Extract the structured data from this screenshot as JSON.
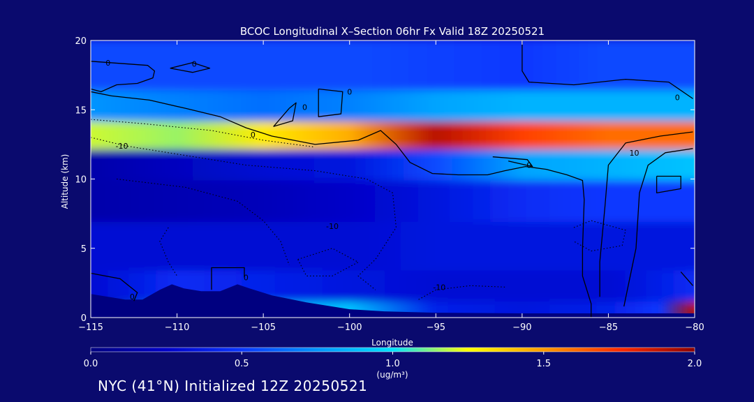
{
  "chart_data": {
    "type": "heatmap",
    "title": "BCOC Longitudinal X–Section 06hr  Fx Valid 18Z 20250521",
    "xlabel": "Longitude",
    "ylabel": "Altitude (km)",
    "xlim": [
      -115,
      -80
    ],
    "ylim": [
      0,
      20
    ],
    "x_ticks": [
      -115,
      -110,
      -105,
      -100,
      -95,
      -90,
      -85,
      -80
    ],
    "x_tick_labels": [
      "−115",
      "−110",
      "−105",
      "−100",
      "−95",
      "−90",
      "−85",
      "−80"
    ],
    "y_ticks": [
      0,
      5,
      10,
      15,
      20
    ],
    "y_tick_labels": [
      "0",
      "5",
      "10",
      "15",
      "20"
    ],
    "colorbar": {
      "min": 0.0,
      "max": 2.0,
      "ticks": [
        0.0,
        0.5,
        1.0,
        1.5,
        2.0
      ],
      "tick_labels": [
        "0.0",
        "0.5",
        "1.0",
        "1.5",
        "2.0"
      ],
      "unit_label": "(ug/m³)",
      "colors": [
        "#000080",
        "#0000c8",
        "#0a37ff",
        "#0094ff",
        "#00e2ff",
        "#ffff00",
        "#ff9900",
        "#ff2a00",
        "#8b0000"
      ]
    },
    "background_field": [
      {
        "alt": 0.5,
        "lon": [
          -115,
          -110,
          -100,
          -95,
          -90,
          -85,
          -82,
          -80
        ],
        "values": [
          0.05,
          0.75,
          0.9,
          0.4,
          0.35,
          0.4,
          0.5,
          1.9
        ]
      },
      {
        "alt": 2,
        "lon": [
          -115,
          -110,
          -100,
          -95,
          -90,
          -85,
          -80
        ],
        "values": [
          0.3,
          0.45,
          0.35,
          0.3,
          0.3,
          0.3,
          0.45
        ]
      },
      {
        "alt": 5,
        "lon": [
          -115,
          -100,
          -95,
          -90,
          -85,
          -80
        ],
        "values": [
          0.3,
          0.3,
          0.35,
          0.35,
          0.35,
          0.35
        ]
      },
      {
        "alt": 9,
        "lon": [
          -115,
          -105,
          -100,
          -95,
          -90,
          -85,
          -80
        ],
        "values": [
          0.15,
          0.2,
          0.25,
          0.35,
          0.45,
          0.5,
          0.5
        ]
      },
      {
        "alt": 11,
        "lon": [
          -115,
          -105,
          -100,
          -95,
          -90,
          -85,
          -80
        ],
        "values": [
          0.15,
          0.3,
          0.35,
          0.55,
          0.8,
          0.85,
          0.9
        ]
      },
      {
        "alt": 13.5,
        "lon": [
          -115,
          -110,
          -105,
          -100,
          -95,
          -90,
          -85,
          -80
        ],
        "values": [
          1.2,
          1.15,
          1.3,
          1.45,
          1.9,
          1.7,
          1.6,
          1.6
        ]
      },
      {
        "alt": 15,
        "lon": [
          -115,
          -110,
          -105,
          -100,
          -95,
          -90,
          -85,
          -80
        ],
        "values": [
          0.75,
          0.7,
          0.65,
          0.7,
          0.8,
          0.85,
          0.85,
          0.85
        ]
      },
      {
        "alt": 18,
        "lon": [
          -115,
          -100,
          -90,
          -85,
          -80
        ],
        "values": [
          0.55,
          0.55,
          0.5,
          0.55,
          0.55
        ]
      }
    ],
    "terrain": [
      [
        -115,
        1.7
      ],
      [
        -113,
        1.3
      ],
      [
        -112,
        1.3
      ],
      [
        -111,
        2.0
      ],
      [
        -110.3,
        2.4
      ],
      [
        -109.6,
        2.1
      ],
      [
        -108.6,
        1.9
      ],
      [
        -107.5,
        1.9
      ],
      [
        -106.5,
        2.4
      ],
      [
        -105.8,
        2.1
      ],
      [
        -104.5,
        1.6
      ],
      [
        -102.5,
        1.1
      ],
      [
        -100,
        0.6
      ],
      [
        -98,
        0.45
      ],
      [
        -95,
        0.35
      ],
      [
        -90,
        0.3
      ],
      [
        -85,
        0.3
      ],
      [
        -80,
        0.3
      ]
    ],
    "contours": [
      {
        "label": "0",
        "style": "solid",
        "points": [
          [
            -115,
            18.5
          ],
          [
            -111.7,
            18.2
          ],
          [
            -111.3,
            17.8
          ],
          [
            -111.4,
            17.3
          ],
          [
            -112.3,
            16.9
          ],
          [
            -113.5,
            16.8
          ],
          [
            -114.4,
            16.3
          ],
          [
            -115,
            16.5
          ]
        ]
      },
      {
        "label": "0",
        "style": "solid",
        "points": [
          [
            -110.4,
            18.0
          ],
          [
            -109.1,
            18.4
          ],
          [
            -108.1,
            18.0
          ],
          [
            -109.1,
            17.7
          ],
          [
            -110.4,
            18.0
          ]
        ]
      },
      {
        "label": "0",
        "style": "solid",
        "points": [
          [
            -101.8,
            16.5
          ],
          [
            -100.4,
            16.3
          ],
          [
            -100.5,
            14.7
          ],
          [
            -101.8,
            14.5
          ],
          [
            -101.8,
            16.5
          ]
        ]
      },
      {
        "label": "0",
        "style": "solid",
        "points": [
          [
            -103.5,
            15.1
          ],
          [
            -103.1,
            15.5
          ],
          [
            -103.3,
            14.2
          ],
          [
            -104.4,
            13.8
          ],
          [
            -103.5,
            15.1
          ]
        ]
      },
      {
        "label": "0",
        "style": "solid",
        "points": [
          [
            -115,
            16.3
          ],
          [
            -113.8,
            16.0
          ],
          [
            -111.6,
            15.7
          ],
          [
            -109.5,
            15.1
          ],
          [
            -107.5,
            14.5
          ],
          [
            -106.0,
            13.7
          ],
          [
            -104.5,
            13.1
          ],
          [
            -102.0,
            12.5
          ],
          [
            -99.5,
            12.8
          ],
          [
            -98.2,
            13.5
          ],
          [
            -97.3,
            12.5
          ],
          [
            -96.5,
            11.2
          ],
          [
            -95.2,
            10.4
          ],
          [
            -93.7,
            10.3
          ],
          [
            -92.0,
            10.3
          ],
          [
            -91.0,
            10.6
          ],
          [
            -89.8,
            10.9
          ],
          [
            -88.6,
            10.7
          ],
          [
            -87.4,
            10.3
          ],
          [
            -86.5,
            9.9
          ],
          [
            -86.4,
            8.5
          ],
          [
            -86.5,
            5.0
          ],
          [
            -86.5,
            3.0
          ],
          [
            -86.0,
            1.0
          ],
          [
            -86.0,
            0.0
          ]
        ]
      },
      {
        "label": "0",
        "style": "solid",
        "points": [
          [
            -90,
            20
          ],
          [
            -90,
            17.8
          ],
          [
            -89.6,
            17.0
          ],
          [
            -87.0,
            16.8
          ],
          [
            -84.0,
            17.2
          ],
          [
            -81.5,
            17.0
          ],
          [
            -80.1,
            15.8
          ]
        ]
      },
      {
        "label": "0",
        "style": "solid",
        "points": [
          [
            -91.7,
            11.6
          ],
          [
            -89.7,
            11.4
          ],
          [
            -89.4,
            10.9
          ],
          [
            -90.8,
            11.3
          ]
        ]
      },
      {
        "label": "0",
        "style": "solid",
        "points": [
          [
            -82.2,
            10.2
          ],
          [
            -80.8,
            10.2
          ],
          [
            -80.8,
            9.3
          ],
          [
            -82.2,
            9.0
          ],
          [
            -82.2,
            10.2
          ]
        ]
      },
      {
        "label": "0",
        "style": "solid",
        "points": [
          [
            -108.0,
            2.0
          ],
          [
            -108.0,
            3.6
          ],
          [
            -106.1,
            3.6
          ],
          [
            -106.1,
            2.9
          ]
        ]
      },
      {
        "label": "0",
        "style": "solid",
        "points": [
          [
            -115,
            3.2
          ],
          [
            -113.3,
            2.8
          ],
          [
            -112.3,
            1.8
          ],
          [
            -112.5,
            1.2
          ]
        ]
      },
      {
        "label": "10",
        "style": "solid",
        "points": [
          [
            -80.1,
            13.4
          ],
          [
            -82.0,
            13.1
          ],
          [
            -84.0,
            12.6
          ],
          [
            -85.0,
            11.0
          ],
          [
            -85.2,
            8.0
          ],
          [
            -85.5,
            4.0
          ],
          [
            -85.5,
            1.5
          ]
        ]
      },
      {
        "label": "10",
        "style": "solid",
        "points": [
          [
            -80.1,
            12.2
          ],
          [
            -81.7,
            11.9
          ],
          [
            -82.7,
            11.0
          ],
          [
            -83.2,
            9.0
          ],
          [
            -83.4,
            5.0
          ],
          [
            -83.9,
            2.0
          ],
          [
            -84.1,
            0.8
          ]
        ]
      },
      {
        "label": "10",
        "style": "solid",
        "points": [
          [
            -80.8,
            3.3
          ],
          [
            -80.1,
            2.3
          ]
        ]
      },
      {
        "label": "-10",
        "style": "dotted",
        "points": [
          [
            -115,
            14.3
          ],
          [
            -112,
            14.0
          ],
          [
            -108,
            13.5
          ],
          [
            -105,
            12.8
          ],
          [
            -102,
            12.3
          ]
        ]
      },
      {
        "label": "-10",
        "style": "dotted",
        "points": [
          [
            -115,
            13.0
          ],
          [
            -113,
            12.4
          ],
          [
            -110,
            11.8
          ],
          [
            -106,
            11.0
          ],
          [
            -102,
            10.6
          ],
          [
            -99,
            10.0
          ],
          [
            -97.5,
            9.0
          ],
          [
            -97.3,
            6.5
          ],
          [
            -98.5,
            4.2
          ],
          [
            -99.5,
            3.0
          ],
          [
            -98.5,
            2.0
          ]
        ]
      },
      {
        "label": "-10",
        "style": "dotted",
        "points": [
          [
            -113.5,
            10.0
          ],
          [
            -109.5,
            9.4
          ],
          [
            -106.5,
            8.4
          ],
          [
            -105.0,
            7.0
          ],
          [
            -104.0,
            5.5
          ],
          [
            -103.5,
            3.8
          ]
        ]
      },
      {
        "label": "-10",
        "style": "dotted",
        "points": [
          [
            -110.5,
            6.5
          ],
          [
            -111.0,
            5.5
          ],
          [
            -110.5,
            4.0
          ],
          [
            -110.0,
            3.0
          ]
        ]
      },
      {
        "label": "-10",
        "style": "dotted",
        "points": [
          [
            -103.0,
            4.2
          ],
          [
            -101.0,
            5.0
          ],
          [
            -99.5,
            4.0
          ],
          [
            -101.0,
            3.0
          ],
          [
            -102.5,
            3.0
          ],
          [
            -103.0,
            4.2
          ]
        ]
      },
      {
        "label": "-10",
        "style": "dotted",
        "points": [
          [
            -91.0,
            2.2
          ],
          [
            -93.0,
            2.3
          ],
          [
            -95.0,
            2.0
          ],
          [
            -96.0,
            1.3
          ]
        ]
      },
      {
        "label": "-10",
        "style": "dotted",
        "points": [
          [
            -87.0,
            6.5
          ],
          [
            -86.0,
            7.0
          ],
          [
            -84.0,
            6.3
          ],
          [
            -84.2,
            5.2
          ],
          [
            -86.0,
            4.8
          ],
          [
            -87.0,
            5.5
          ]
        ]
      }
    ],
    "contour_labels": [
      {
        "text": "0",
        "lon": -114.0,
        "alt": 18.4
      },
      {
        "text": "0",
        "lon": -109.0,
        "alt": 18.3
      },
      {
        "text": "0",
        "lon": -100.0,
        "alt": 16.3
      },
      {
        "text": "0",
        "lon": -102.6,
        "alt": 15.2
      },
      {
        "text": "0",
        "lon": -105.6,
        "alt": 13.2
      },
      {
        "text": "0",
        "lon": -89.6,
        "alt": 11.0
      },
      {
        "text": "0",
        "lon": -81.0,
        "alt": 15.9
      },
      {
        "text": "0",
        "lon": -106.0,
        "alt": 2.9
      },
      {
        "text": "0",
        "lon": -112.6,
        "alt": 1.5
      },
      {
        "text": "10",
        "lon": -83.5,
        "alt": 11.9
      },
      {
        "text": "-10",
        "lon": -113.2,
        "alt": 12.4
      },
      {
        "text": "-10",
        "lon": -101.0,
        "alt": 6.6
      },
      {
        "text": "-10",
        "lon": -94.8,
        "alt": 2.2
      }
    ]
  },
  "caption": "NYC (41°N) Initialized 12Z 20250521"
}
